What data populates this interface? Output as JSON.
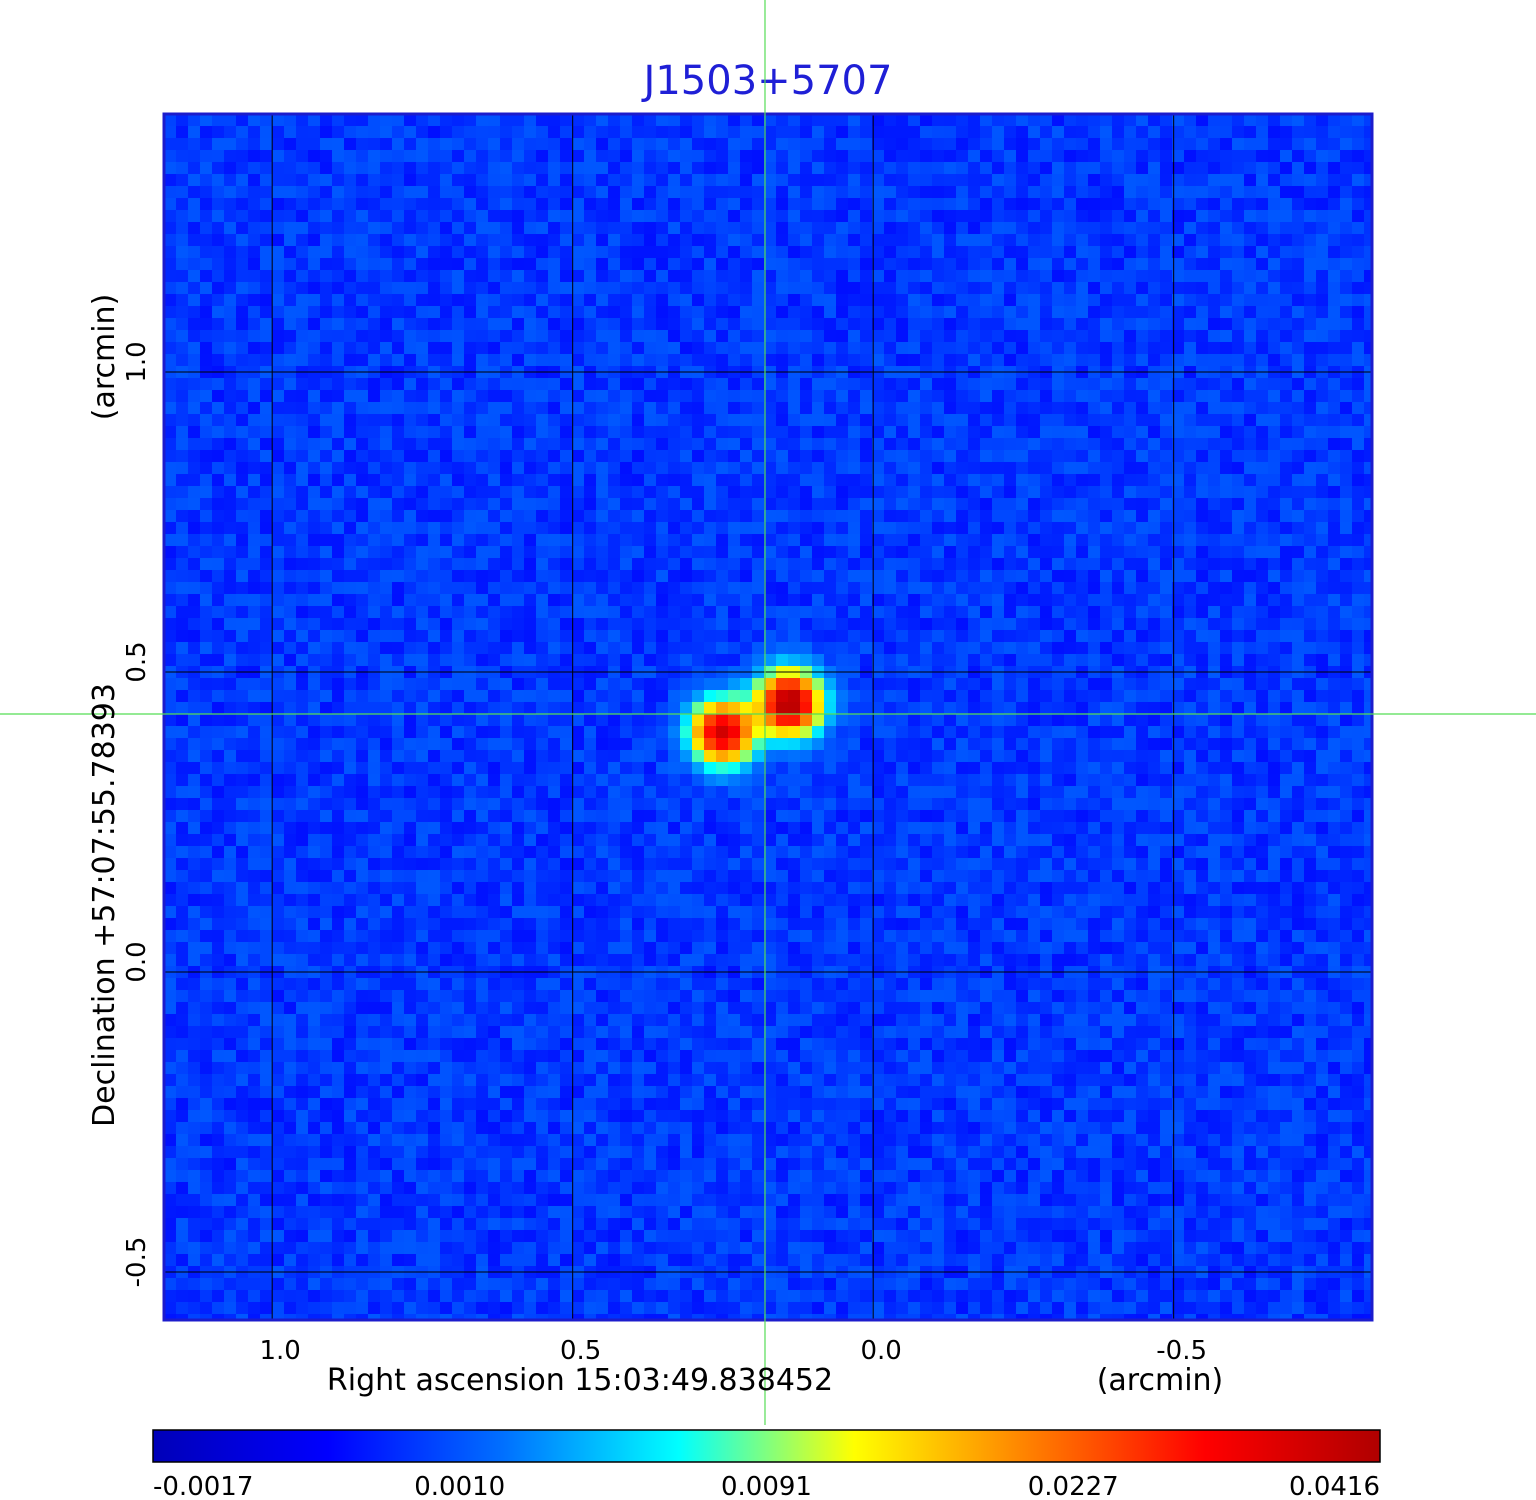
{
  "chart_data": {
    "type": "heatmap",
    "title": "J1503+5707",
    "xlabel": "Right ascension  15:03:49.838452",
    "xunit": "(arcmin)",
    "ylabel": "Declination  +57:07:55.78393",
    "yunit": "(arcmin)",
    "x_ticks": [
      1.0,
      0.5,
      0.0,
      -0.5
    ],
    "x_tick_labels": [
      "1.0",
      "0.5",
      "0.0",
      "-0.5"
    ],
    "y_ticks": [
      1.0,
      0.5,
      0.0,
      -0.5
    ],
    "y_tick_labels": [
      "1.0",
      "0.5",
      "0.0",
      "-0.5"
    ],
    "xlim": [
      1.18,
      -0.83
    ],
    "ylim": [
      -0.58,
      1.43
    ],
    "grid": true,
    "crosshair": {
      "x": 0.18,
      "y": 0.43,
      "color": "#55dd55"
    },
    "sources": [
      {
        "x": 0.14,
        "y": 0.448,
        "peak": 0.0416
      },
      {
        "x": 0.25,
        "y": 0.4,
        "peak": 0.036
      }
    ],
    "background_level": 0.0006,
    "colorbar": {
      "ticks": [
        -0.0017,
        0.001,
        0.0091,
        0.0227,
        0.0416
      ],
      "tick_labels": [
        "-0.0017",
        "0.0010",
        "0.0091",
        "0.0227",
        "0.0416"
      ],
      "colors": [
        "#0000b8",
        "#0000ff",
        "#0070ff",
        "#00ffff",
        "#ffff00",
        "#ff8000",
        "#ff0000",
        "#b00000"
      ]
    }
  }
}
